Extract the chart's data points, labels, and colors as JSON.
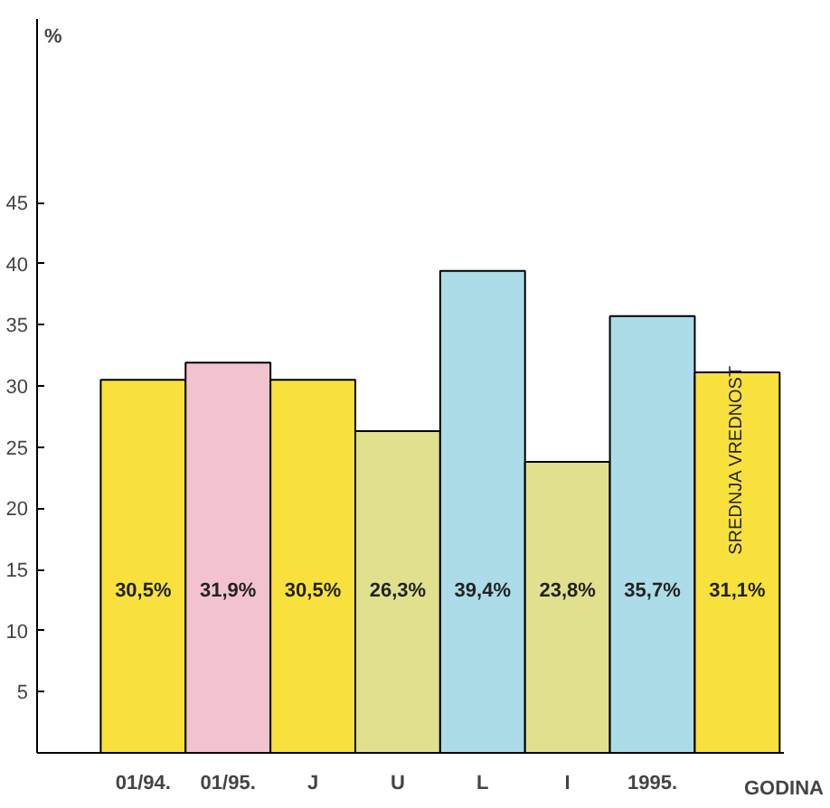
{
  "chart_data": {
    "type": "bar",
    "ylabel": "%",
    "xlabel": "GODINA",
    "categories": [
      "01/94.",
      "01/95.",
      "J",
      "U",
      "L",
      "I",
      "1995.",
      null
    ],
    "values": [
      30.5,
      31.9,
      30.5,
      26.3,
      39.4,
      23.8,
      35.7,
      31.1
    ],
    "colors": [
      "#f8e13c",
      "#f2c3cf",
      "#f8e13c",
      "#e0e08e",
      "#acdce8",
      "#e0e08e",
      "#acdce8",
      "#f8e13c"
    ],
    "value_labels": [
      "30,5%",
      "31,9%",
      "30,5%",
      "26,3%",
      "39,4%",
      "23,8%",
      "35,7%",
      "31,1%"
    ],
    "annotations": [
      "SREDNJA VREDNOST"
    ],
    "ylim": [
      0,
      60
    ],
    "yticks": [
      5,
      10,
      15,
      20,
      25,
      30,
      35,
      40,
      45
    ],
    "grid": false
  }
}
